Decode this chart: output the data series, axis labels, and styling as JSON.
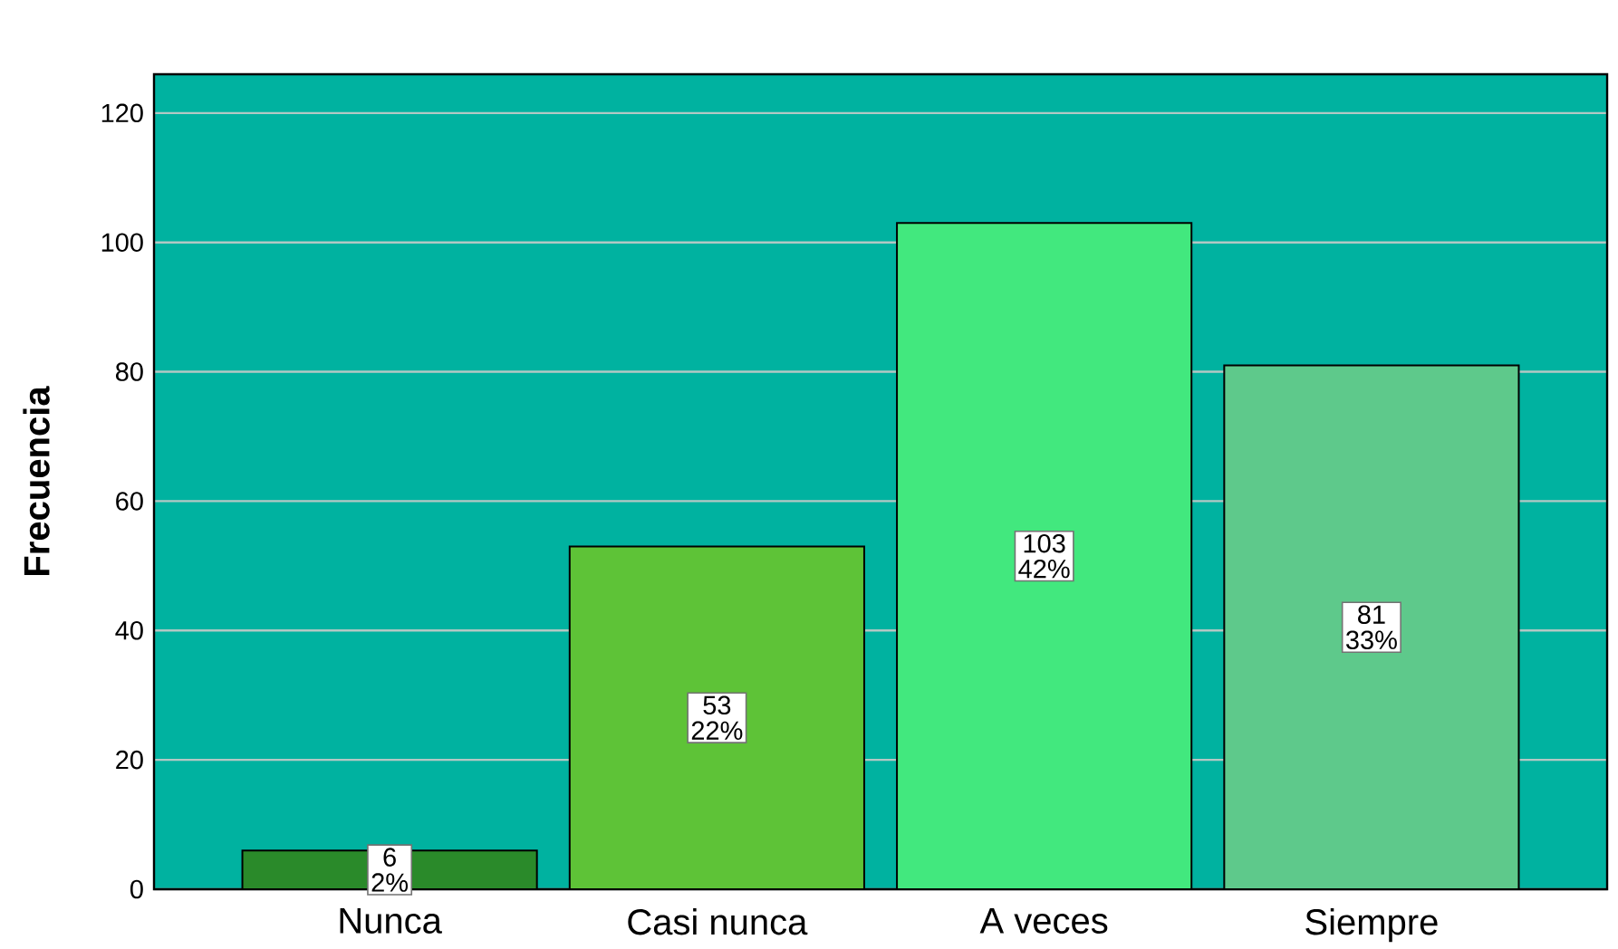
{
  "chart_data": {
    "type": "bar",
    "ylabel": "Frecuencia",
    "categories": [
      "Nunca",
      "Casi nunca",
      "A veces",
      "Siempre"
    ],
    "values": [
      6,
      53,
      103,
      81
    ],
    "colors": [
      "#2a8a2a",
      "#5ec337",
      "#42e87e",
      "#5ec98b"
    ],
    "value_labels": [
      "6 2%",
      "53 22%",
      "103 42%",
      "81 33%"
    ],
    "ylim": [
      0,
      126
    ],
    "yticks": [
      0,
      20,
      40,
      60,
      80,
      100,
      120
    ],
    "grid": "y"
  }
}
